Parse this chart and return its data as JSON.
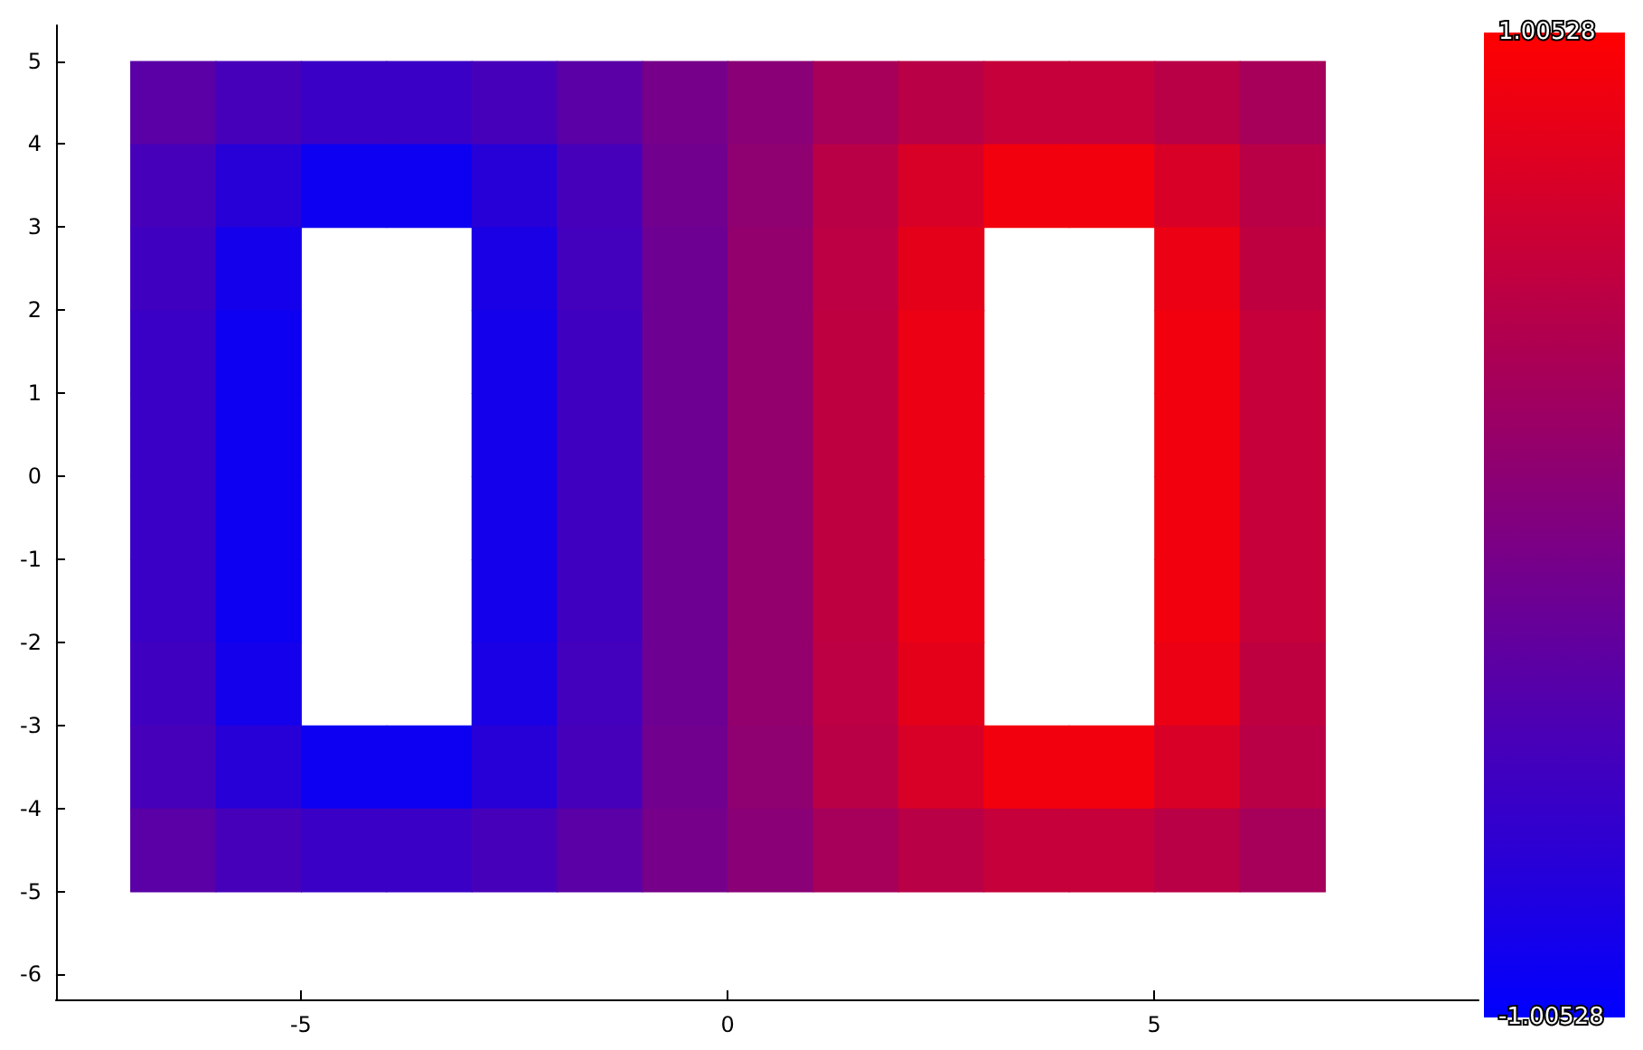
{
  "chart_data": {
    "type": "heatmap",
    "x": [
      -6.5,
      -5.5,
      -4.5,
      -3.5,
      -2.5,
      -1.5,
      -0.5,
      0.5,
      1.5,
      2.5,
      3.5,
      4.5,
      5.5,
      6.5
    ],
    "y": [
      4.5,
      3.5,
      2.5,
      1.5,
      0.5,
      -0.5,
      -1.5,
      -2.5,
      -3.5,
      -4.5
    ],
    "cells": [
      [
        -0.3,
        -0.45,
        -0.55,
        -0.55,
        -0.45,
        -0.3,
        -0.08,
        0.08,
        0.3,
        0.45,
        0.55,
        0.55,
        0.45,
        0.3
      ],
      [
        -0.45,
        -0.7,
        -0.9,
        -0.9,
        -0.7,
        -0.45,
        -0.12,
        0.12,
        0.45,
        0.7,
        0.9,
        0.9,
        0.7,
        0.45
      ],
      [
        -0.5,
        -0.85,
        null,
        null,
        -0.8,
        -0.48,
        -0.15,
        0.15,
        0.48,
        0.8,
        null,
        null,
        0.85,
        0.5
      ],
      [
        -0.55,
        -0.9,
        null,
        null,
        -0.85,
        -0.5,
        -0.15,
        0.15,
        0.5,
        0.85,
        null,
        null,
        0.9,
        0.55
      ],
      [
        -0.55,
        -0.9,
        null,
        null,
        -0.85,
        -0.5,
        -0.15,
        0.15,
        0.5,
        0.85,
        null,
        null,
        0.9,
        0.55
      ],
      [
        -0.55,
        -0.9,
        null,
        null,
        -0.85,
        -0.5,
        -0.15,
        0.15,
        0.5,
        0.85,
        null,
        null,
        0.9,
        0.55
      ],
      [
        -0.55,
        -0.9,
        null,
        null,
        -0.85,
        -0.5,
        -0.15,
        0.15,
        0.5,
        0.85,
        null,
        null,
        0.9,
        0.55
      ],
      [
        -0.5,
        -0.85,
        null,
        null,
        -0.8,
        -0.48,
        -0.15,
        0.15,
        0.48,
        0.8,
        null,
        null,
        0.85,
        0.5
      ],
      [
        -0.45,
        -0.7,
        -0.9,
        -0.9,
        -0.7,
        -0.45,
        -0.12,
        0.12,
        0.45,
        0.7,
        0.9,
        0.9,
        0.7,
        0.45
      ],
      [
        -0.3,
        -0.45,
        -0.55,
        -0.55,
        -0.45,
        -0.3,
        -0.08,
        0.08,
        0.3,
        0.45,
        0.55,
        0.55,
        0.45,
        0.3
      ]
    ],
    "clim": [
      -1.00528,
      1.00528
    ],
    "cticks": [
      {
        "value": -1.00528,
        "label": "-1.00528"
      },
      {
        "value": 1.00528,
        "label": "1.00528"
      }
    ],
    "xlim": [
      -7.87,
      8.8
    ],
    "ylim": [
      -6.3,
      5.43
    ],
    "xticks": [
      -5,
      0,
      5
    ],
    "yticks": [
      -6,
      -5,
      -4,
      -3,
      -2,
      -1,
      0,
      1,
      2,
      3,
      4,
      5
    ],
    "grid": false
  }
}
